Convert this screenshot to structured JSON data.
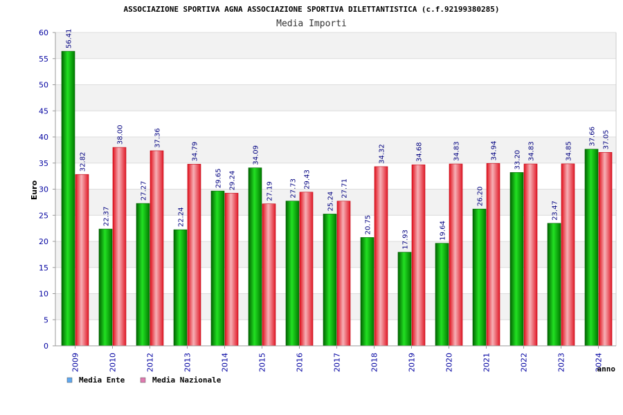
{
  "chart_data": {
    "type": "bar",
    "title": "ASSOCIAZIONE SPORTIVA AGNA ASSOCIAZIONE SPORTIVA DILETTANTISTICA (c.f.92199380285)",
    "subtitle": "Media Importi",
    "xlabel": "anno",
    "ylabel": "Euro",
    "ylim": [
      0,
      60
    ],
    "yticks": [
      "0",
      "5",
      "10",
      "15",
      "20",
      "25",
      "30",
      "35",
      "40",
      "45",
      "50",
      "55",
      "60"
    ],
    "grid": true,
    "legend_position": "bottom-left",
    "categories": [
      "2009",
      "2010",
      "2012",
      "2013",
      "2014",
      "2015",
      "2016",
      "2017",
      "2018",
      "2019",
      "2020",
      "2021",
      "2022",
      "2023",
      "2024"
    ],
    "series": [
      {
        "name": "Media Ente",
        "values": [
          56.41,
          22.37,
          27.27,
          22.24,
          29.65,
          34.09,
          27.73,
          25.24,
          20.75,
          17.93,
          19.64,
          26.2,
          33.2,
          23.47,
          37.66
        ],
        "labels": [
          "56.41",
          "22.37",
          "27.27",
          "22.24",
          "29.65",
          "34.09",
          "27.73",
          "25.24",
          "20.75",
          "17.93",
          "19.64",
          "26.20",
          "33.20",
          "23.47",
          "37.66"
        ]
      },
      {
        "name": "Media Nazionale",
        "values": [
          32.82,
          38.0,
          37.36,
          34.79,
          29.24,
          27.19,
          29.43,
          27.71,
          34.32,
          34.68,
          34.83,
          34.94,
          34.83,
          34.85,
          37.05
        ],
        "labels": [
          "32.82",
          "38.00",
          "37.36",
          "34.79",
          "29.24",
          "27.19",
          "29.43",
          "27.71",
          "34.32",
          "34.68",
          "34.83",
          "34.94",
          "34.83",
          "34.85",
          "37.05"
        ]
      }
    ]
  },
  "colors": {
    "ente_bar": "#00c000",
    "ente_bar_dark": "#007a00",
    "nazionale_bar": "#f0303c",
    "nazionale_bar_light": "#f7a7ae",
    "legend_ente": "#5fa8f0",
    "legend_nazionale": "#e07ab0",
    "axis_text": "#0000a0",
    "label_text": "#000080",
    "grid_band": "#f2f2f2"
  }
}
